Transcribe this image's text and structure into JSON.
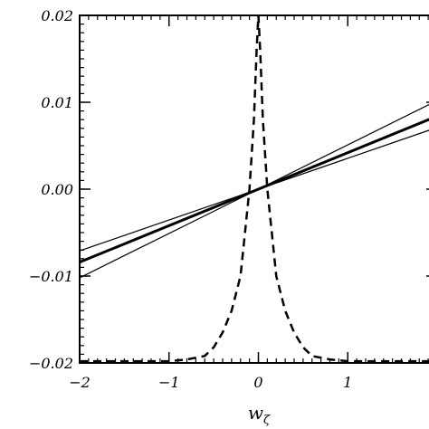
{
  "chart_data": {
    "type": "line",
    "title": "",
    "xlabel": "w",
    "xlabel_subscript": "ζ",
    "ylabel": "",
    "xlim": [
      -2,
      2
    ],
    "ylim": [
      -0.02,
      0.02
    ],
    "x_ticks": [
      -2,
      -1,
      0,
      1
    ],
    "x_tick_labels": [
      "−2",
      "−1",
      "0",
      "1"
    ],
    "y_ticks": [
      0.02,
      0.01,
      0.0,
      -0.01,
      -0.02
    ],
    "y_tick_labels": [
      "0.02",
      "0.01",
      "0.00",
      "−0.01",
      "−0.02"
    ],
    "grid": false,
    "legend": "none",
    "series": [
      {
        "style": "thick-solid",
        "x": [
          -2,
          2
        ],
        "y": [
          -0.0084,
          0.0084
        ]
      },
      {
        "style": "thin-solid",
        "x": [
          -2,
          2
        ],
        "y": [
          -0.0102,
          0.0102
        ]
      },
      {
        "style": "thin-solid",
        "x": [
          -2,
          2
        ],
        "y": [
          -0.0071,
          0.0071
        ]
      },
      {
        "style": "dashed",
        "x": [
          -2.0,
          -1.0,
          -0.8,
          -0.6,
          -0.5,
          -0.4,
          -0.3,
          -0.2,
          -0.15,
          -0.1,
          -0.05,
          -0.02,
          0.0,
          0.02,
          0.05,
          0.1,
          0.15,
          0.2,
          0.3,
          0.4,
          0.5,
          0.6,
          0.8,
          1.0,
          2.0
        ],
        "y": [
          -0.0198,
          -0.0198,
          -0.0196,
          -0.0192,
          -0.0182,
          -0.0165,
          -0.014,
          -0.01,
          -0.005,
          0.0,
          0.008,
          0.016,
          0.02,
          0.016,
          0.008,
          0.0,
          -0.005,
          -0.01,
          -0.014,
          -0.0165,
          -0.0182,
          -0.0192,
          -0.0196,
          -0.0198,
          -0.0198
        ]
      }
    ]
  }
}
